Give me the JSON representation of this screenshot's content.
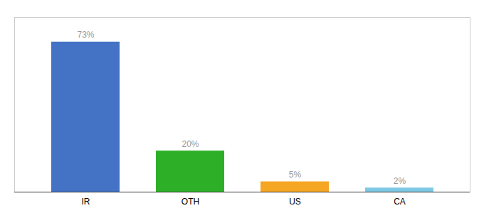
{
  "chart_data": {
    "type": "bar",
    "categories": [
      "IR",
      "OTH",
      "US",
      "CA"
    ],
    "values": [
      73,
      20,
      5,
      2
    ],
    "value_labels": [
      "73%",
      "20%",
      "5%",
      "2%"
    ],
    "colors": [
      "#4472c4",
      "#2db027",
      "#f5a623",
      "#7ec8e3"
    ],
    "data_labels": true,
    "ylim": [
      0,
      85
    ],
    "tick_labels": "x"
  }
}
